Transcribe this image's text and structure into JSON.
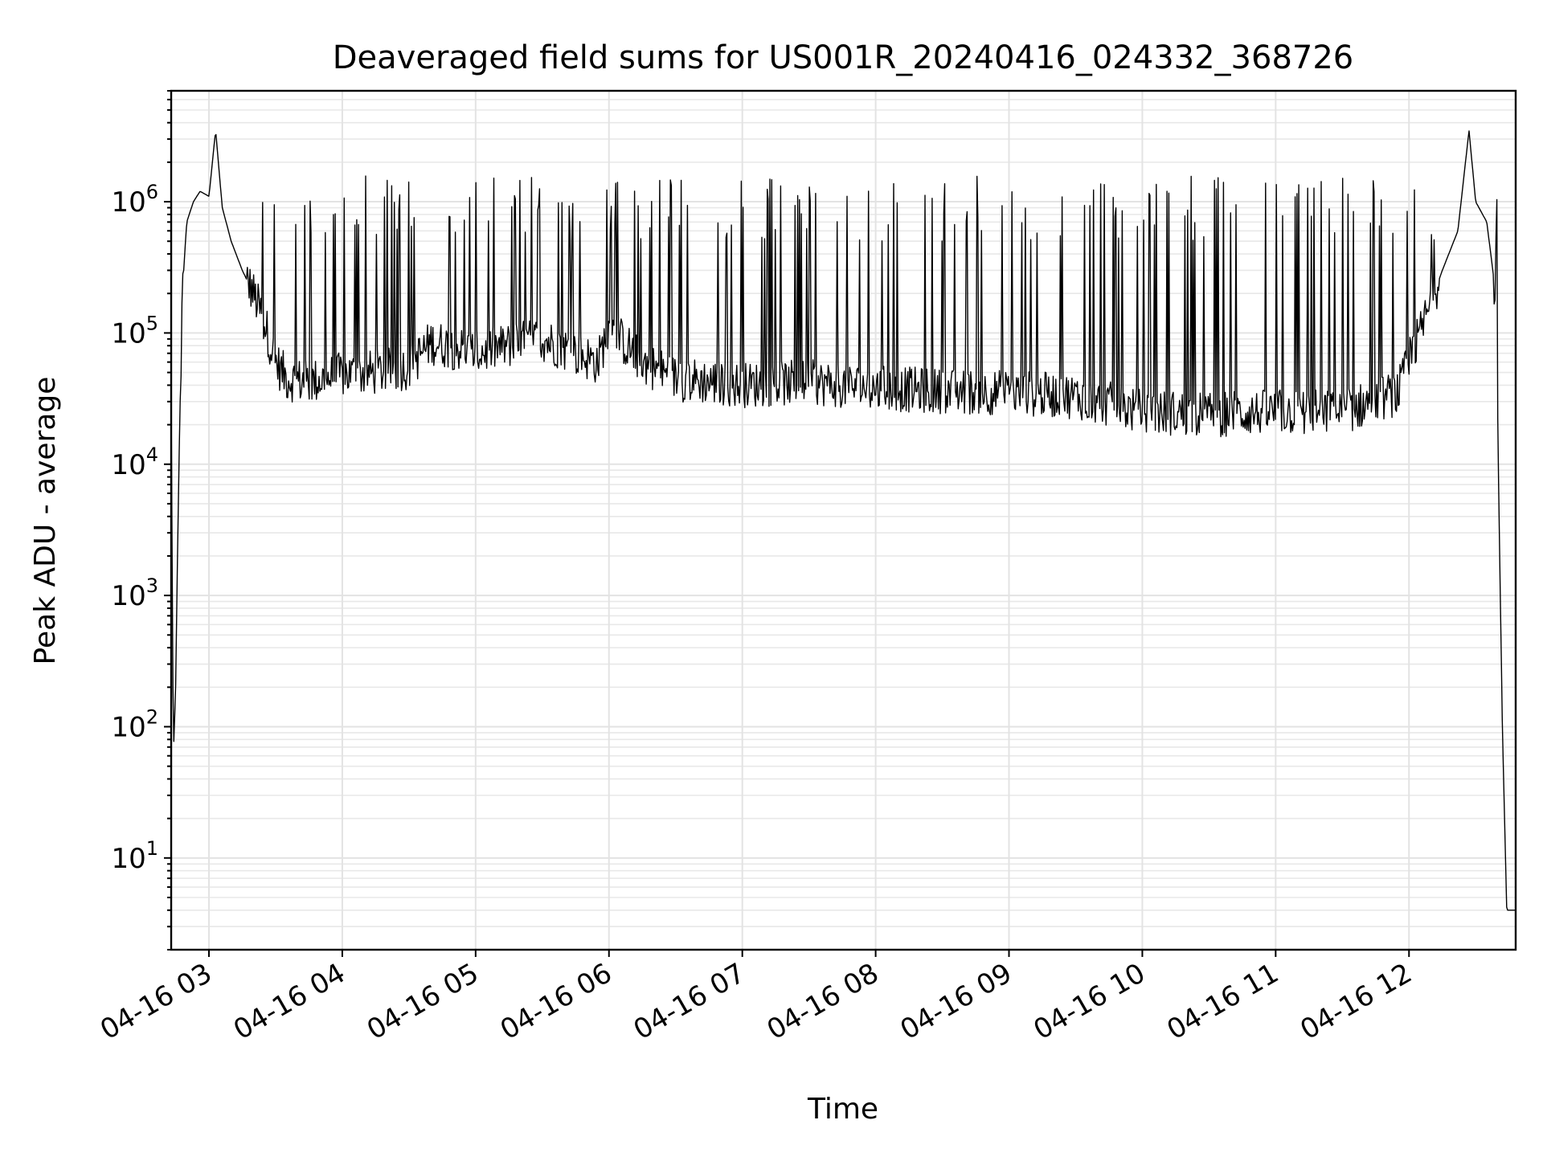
{
  "chart_data": {
    "type": "line",
    "title": "Deaveraged field sums for US001R_20240416_024332_368726",
    "xlabel": "Time",
    "ylabel": "Peak ADU - average",
    "xlim": [
      "2024-04-16 02:43",
      "2024-04-16 12:48"
    ],
    "ylim": [
      2,
      7000000
    ],
    "yscale": "log",
    "grid": true,
    "x_ticks": [
      "04-16 03",
      "04-16 04",
      "04-16 05",
      "04-16 06",
      "04-16 07",
      "04-16 08",
      "04-16 09",
      "04-16 10",
      "04-16 11",
      "04-16 12"
    ],
    "y_ticks": [
      {
        "value": 10,
        "base": "10",
        "exp": "1"
      },
      {
        "value": 100,
        "base": "10",
        "exp": "2"
      },
      {
        "value": 1000,
        "base": "10",
        "exp": "3"
      },
      {
        "value": 10000,
        "base": "10",
        "exp": "4"
      },
      {
        "value": 100000,
        "base": "10",
        "exp": "5"
      },
      {
        "value": 1000000,
        "base": "10",
        "exp": "6"
      }
    ],
    "series_color": "#000000",
    "series": [
      {
        "points": [
          [
            "2024-04-16 02:43",
            30000
          ],
          [
            "2024-04-16 02:44",
            60
          ],
          [
            "2024-04-16 02:45",
            200
          ],
          [
            "2024-04-16 02:46",
            3000
          ],
          [
            "2024-04-16 02:48",
            200000
          ],
          [
            "2024-04-16 02:50",
            700000
          ],
          [
            "2024-04-16 02:53",
            1000000
          ],
          [
            "2024-04-16 02:56",
            1200000
          ],
          [
            "2024-04-16 03:00",
            1100000
          ],
          [
            "2024-04-16 03:03",
            3500000
          ],
          [
            "2024-04-16 03:06",
            900000
          ],
          [
            "2024-04-16 03:10",
            500000
          ],
          [
            "2024-04-16 03:15",
            300000
          ],
          [
            "2024-04-16 03:20",
            200000
          ],
          [
            "2024-04-16 03:25",
            120000
          ],
          [
            "2024-04-16 03:30",
            60000
          ],
          [
            "2024-04-16 03:35",
            45000
          ],
          [
            "2024-04-16 03:45",
            42000
          ],
          [
            "2024-04-16 04:00",
            48000
          ],
          [
            "2024-04-16 04:15",
            50000
          ],
          [
            "2024-04-16 04:30",
            55000
          ],
          [
            "2024-04-16 04:40",
            85000
          ],
          [
            "2024-04-16 04:50",
            78000
          ],
          [
            "2024-04-16 05:00",
            70000
          ],
          [
            "2024-04-16 05:15",
            80000
          ],
          [
            "2024-04-16 05:30",
            90000
          ],
          [
            "2024-04-16 05:45",
            70000
          ],
          [
            "2024-04-16 05:55",
            60000
          ],
          [
            "2024-04-16 06:00",
            110000
          ],
          [
            "2024-04-16 06:15",
            60000
          ],
          [
            "2024-04-16 06:30",
            45000
          ],
          [
            "2024-04-16 07:00",
            40000
          ],
          [
            "2024-04-16 07:30",
            42000
          ],
          [
            "2024-04-16 08:00",
            38000
          ],
          [
            "2024-04-16 08:30",
            36000
          ],
          [
            "2024-04-16 09:00",
            35000
          ],
          [
            "2024-04-16 09:30",
            33000
          ],
          [
            "2024-04-16 10:00",
            25000
          ],
          [
            "2024-04-16 10:30",
            24000
          ],
          [
            "2024-04-16 11:00",
            25000
          ],
          [
            "2024-04-16 11:30",
            25000
          ],
          [
            "2024-04-16 11:55",
            35000
          ],
          [
            "2024-04-16 12:05",
            100000
          ],
          [
            "2024-04-16 12:15",
            300000
          ],
          [
            "2024-04-16 12:22",
            600000
          ],
          [
            "2024-04-16 12:27",
            3500000
          ],
          [
            "2024-04-16 12:30",
            1000000
          ],
          [
            "2024-04-16 12:35",
            700000
          ],
          [
            "2024-04-16 12:39",
            200000
          ],
          [
            "2024-04-16 12:42",
            100
          ],
          [
            "2024-04-16 12:44",
            4
          ],
          [
            "2024-04-16 12:48",
            4
          ]
        ]
      }
    ]
  }
}
